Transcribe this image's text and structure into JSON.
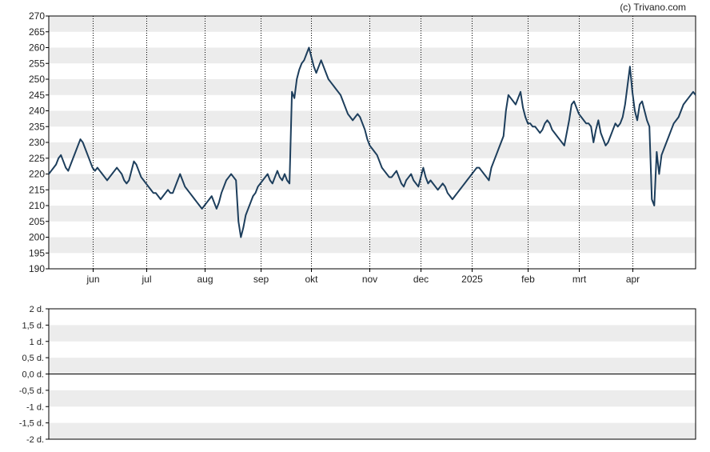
{
  "copyright": "(c) Trivano.com",
  "chart_data": [
    {
      "type": "line",
      "title": "",
      "xlabel": "",
      "ylabel": "",
      "ylim": [
        190,
        270
      ],
      "y_ticks": [
        "270",
        "265",
        "260",
        "255",
        "250",
        "245",
        "240",
        "235",
        "230",
        "225",
        "220",
        "215",
        "210",
        "205",
        "200",
        "195",
        "190"
      ],
      "x_tick_labels": [
        "jun",
        "jul",
        "aug",
        "sep",
        "okt",
        "nov",
        "dec",
        "2025",
        "feb",
        "mrt",
        "apr"
      ],
      "x_tick_index": [
        18,
        40,
        64,
        87,
        108,
        132,
        153,
        174,
        197,
        218,
        240
      ],
      "grid": "horizontal bands and dotted vertical lines at month ticks",
      "line_color": "#1d3e5c",
      "series": [
        {
          "values": [
            220,
            221,
            222,
            223,
            225,
            226,
            224,
            222,
            221,
            223,
            225,
            227,
            229,
            231,
            230,
            228,
            226,
            224,
            222,
            221,
            222,
            221,
            220,
            219,
            218,
            219,
            220,
            221,
            222,
            221,
            220,
            218,
            217,
            218,
            221,
            224,
            223,
            221,
            219,
            218,
            217,
            216,
            215,
            214,
            214,
            213,
            212,
            213,
            214,
            215,
            214,
            214,
            216,
            218,
            220,
            218,
            216,
            215,
            214,
            213,
            212,
            211,
            210,
            209,
            210,
            211,
            212,
            213,
            211,
            209,
            211,
            214,
            216,
            218,
            219,
            220,
            219,
            218,
            205,
            200,
            203,
            207,
            209,
            211,
            213,
            214,
            216,
            217,
            218,
            219,
            220,
            218,
            217,
            219,
            221,
            219,
            218,
            220,
            218,
            217,
            246,
            244,
            250,
            253,
            255,
            256,
            258,
            260,
            257,
            254,
            252,
            254,
            256,
            254,
            252,
            250,
            249,
            248,
            247,
            246,
            245,
            243,
            241,
            239,
            238,
            237,
            238,
            239,
            238,
            236,
            234,
            231,
            229,
            228,
            227,
            226,
            224,
            222,
            221,
            220,
            219,
            219,
            220,
            221,
            219,
            217,
            216,
            218,
            219,
            220,
            218,
            217,
            216,
            219,
            222,
            219,
            217,
            218,
            217,
            216,
            215,
            216,
            217,
            216,
            214,
            213,
            212,
            213,
            214,
            215,
            216,
            217,
            218,
            219,
            220,
            221,
            222,
            222,
            221,
            220,
            219,
            218,
            222,
            224,
            226,
            228,
            230,
            232,
            240,
            245,
            244,
            243,
            242,
            244,
            246,
            241,
            238,
            236,
            236,
            235,
            235,
            234,
            233,
            234,
            236,
            237,
            236,
            234,
            233,
            232,
            231,
            230,
            229,
            233,
            237,
            242,
            243,
            241,
            239,
            238,
            237,
            236,
            236,
            235,
            230,
            234,
            237,
            233,
            231,
            229,
            230,
            232,
            234,
            236,
            235,
            236,
            238,
            242,
            248,
            254,
            246,
            240,
            237,
            242,
            243,
            240,
            237,
            235,
            212,
            210,
            227,
            220,
            226,
            228,
            230,
            232,
            234,
            236,
            237,
            238,
            240,
            242,
            243,
            244,
            245,
            246,
            245
          ]
        }
      ]
    },
    {
      "type": "bar",
      "title": "",
      "xlabel": "",
      "ylabel": "",
      "ylim": [
        -2,
        2
      ],
      "y_ticks": [
        "2 d.",
        "1,5 d.",
        "1 d.",
        "0,5 d.",
        "0,0 d.",
        "-0,5 d.",
        "-1 d.",
        "-1,5 d.",
        "-2 d."
      ],
      "series": []
    }
  ]
}
